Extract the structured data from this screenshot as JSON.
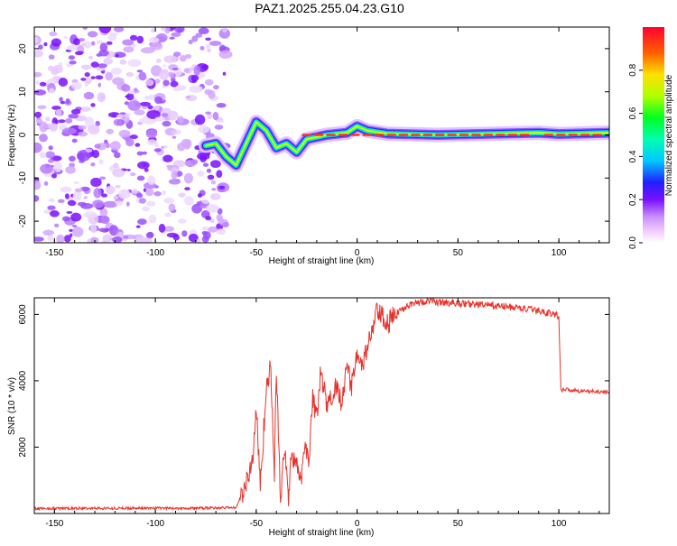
{
  "title": "PAZ1.2025.255.04.23.G10",
  "chart_data": [
    {
      "type": "heatmap",
      "name": "spectrogram",
      "xlabel": "Height of straight line (km)",
      "ylabel": "Frequency (Hz)",
      "xlim": [
        -160,
        125
      ],
      "ylim": [
        -25,
        25
      ],
      "xticks": [
        -150,
        -100,
        -50,
        0,
        50,
        100
      ],
      "yticks": [
        -20,
        -10,
        0,
        10,
        20
      ],
      "colorbar": {
        "label": "Normalized spectral amplitude",
        "range": [
          0.0,
          1.0
        ],
        "ticks": [
          0.0,
          0.2,
          0.4,
          0.6,
          0.8
        ]
      },
      "noise_region_x": [
        -160,
        -67
      ],
      "signal_track": [
        {
          "x": -75,
          "y": -2.5
        },
        {
          "x": -70,
          "y": -2
        },
        {
          "x": -65,
          "y": -5
        },
        {
          "x": -60,
          "y": -7
        },
        {
          "x": -55,
          "y": -2
        },
        {
          "x": -50,
          "y": 3
        },
        {
          "x": -45,
          "y": 1
        },
        {
          "x": -40,
          "y": -3
        },
        {
          "x": -35,
          "y": -2
        },
        {
          "x": -30,
          "y": -4
        },
        {
          "x": -25,
          "y": -1
        },
        {
          "x": -15,
          "y": 0
        },
        {
          "x": -5,
          "y": 0.5
        },
        {
          "x": 0,
          "y": 2
        },
        {
          "x": 5,
          "y": 1
        },
        {
          "x": 15,
          "y": 0.3
        },
        {
          "x": 40,
          "y": 0
        },
        {
          "x": 90,
          "y": 0.5
        },
        {
          "x": 100,
          "y": 0.2
        },
        {
          "x": 125,
          "y": 0.5
        }
      ]
    },
    {
      "type": "line",
      "name": "snr",
      "xlabel": "Height of straight line (km)",
      "ylabel": "SNR (10 * v/v)",
      "xlim": [
        -160,
        125
      ],
      "ylim": [
        0,
        6500
      ],
      "xticks": [
        -150,
        -100,
        -50,
        0,
        50,
        100
      ],
      "yticks": [
        2000,
        4000,
        6000
      ],
      "color": "#e8332c",
      "series": [
        {
          "name": "SNR",
          "x": [
            -160,
            -120,
            -80,
            -60,
            -58,
            -55,
            -52,
            -50,
            -48,
            -45,
            -43,
            -41,
            -40,
            -38,
            -36,
            -34,
            -33,
            -30,
            -28,
            -26,
            -24,
            -22,
            -20,
            -18,
            -15,
            -12,
            -10,
            -8,
            -5,
            -3,
            0,
            2,
            5,
            8,
            10,
            15,
            20,
            25,
            30,
            35,
            45,
            60,
            80,
            95,
            100,
            101,
            102,
            110,
            125
          ],
          "y": [
            150,
            160,
            160,
            180,
            450,
            900,
            1500,
            3200,
            800,
            3800,
            4500,
            1200,
            4400,
            400,
            2000,
            300,
            1800,
            1400,
            900,
            2200,
            1500,
            3600,
            2800,
            4300,
            3200,
            3600,
            3900,
            3400,
            4400,
            3800,
            4900,
            4300,
            5000,
            5600,
            6100,
            5700,
            6050,
            6300,
            6350,
            6400,
            6350,
            6300,
            6200,
            6050,
            5950,
            3700,
            3750,
            3700,
            3650
          ]
        }
      ]
    }
  ]
}
